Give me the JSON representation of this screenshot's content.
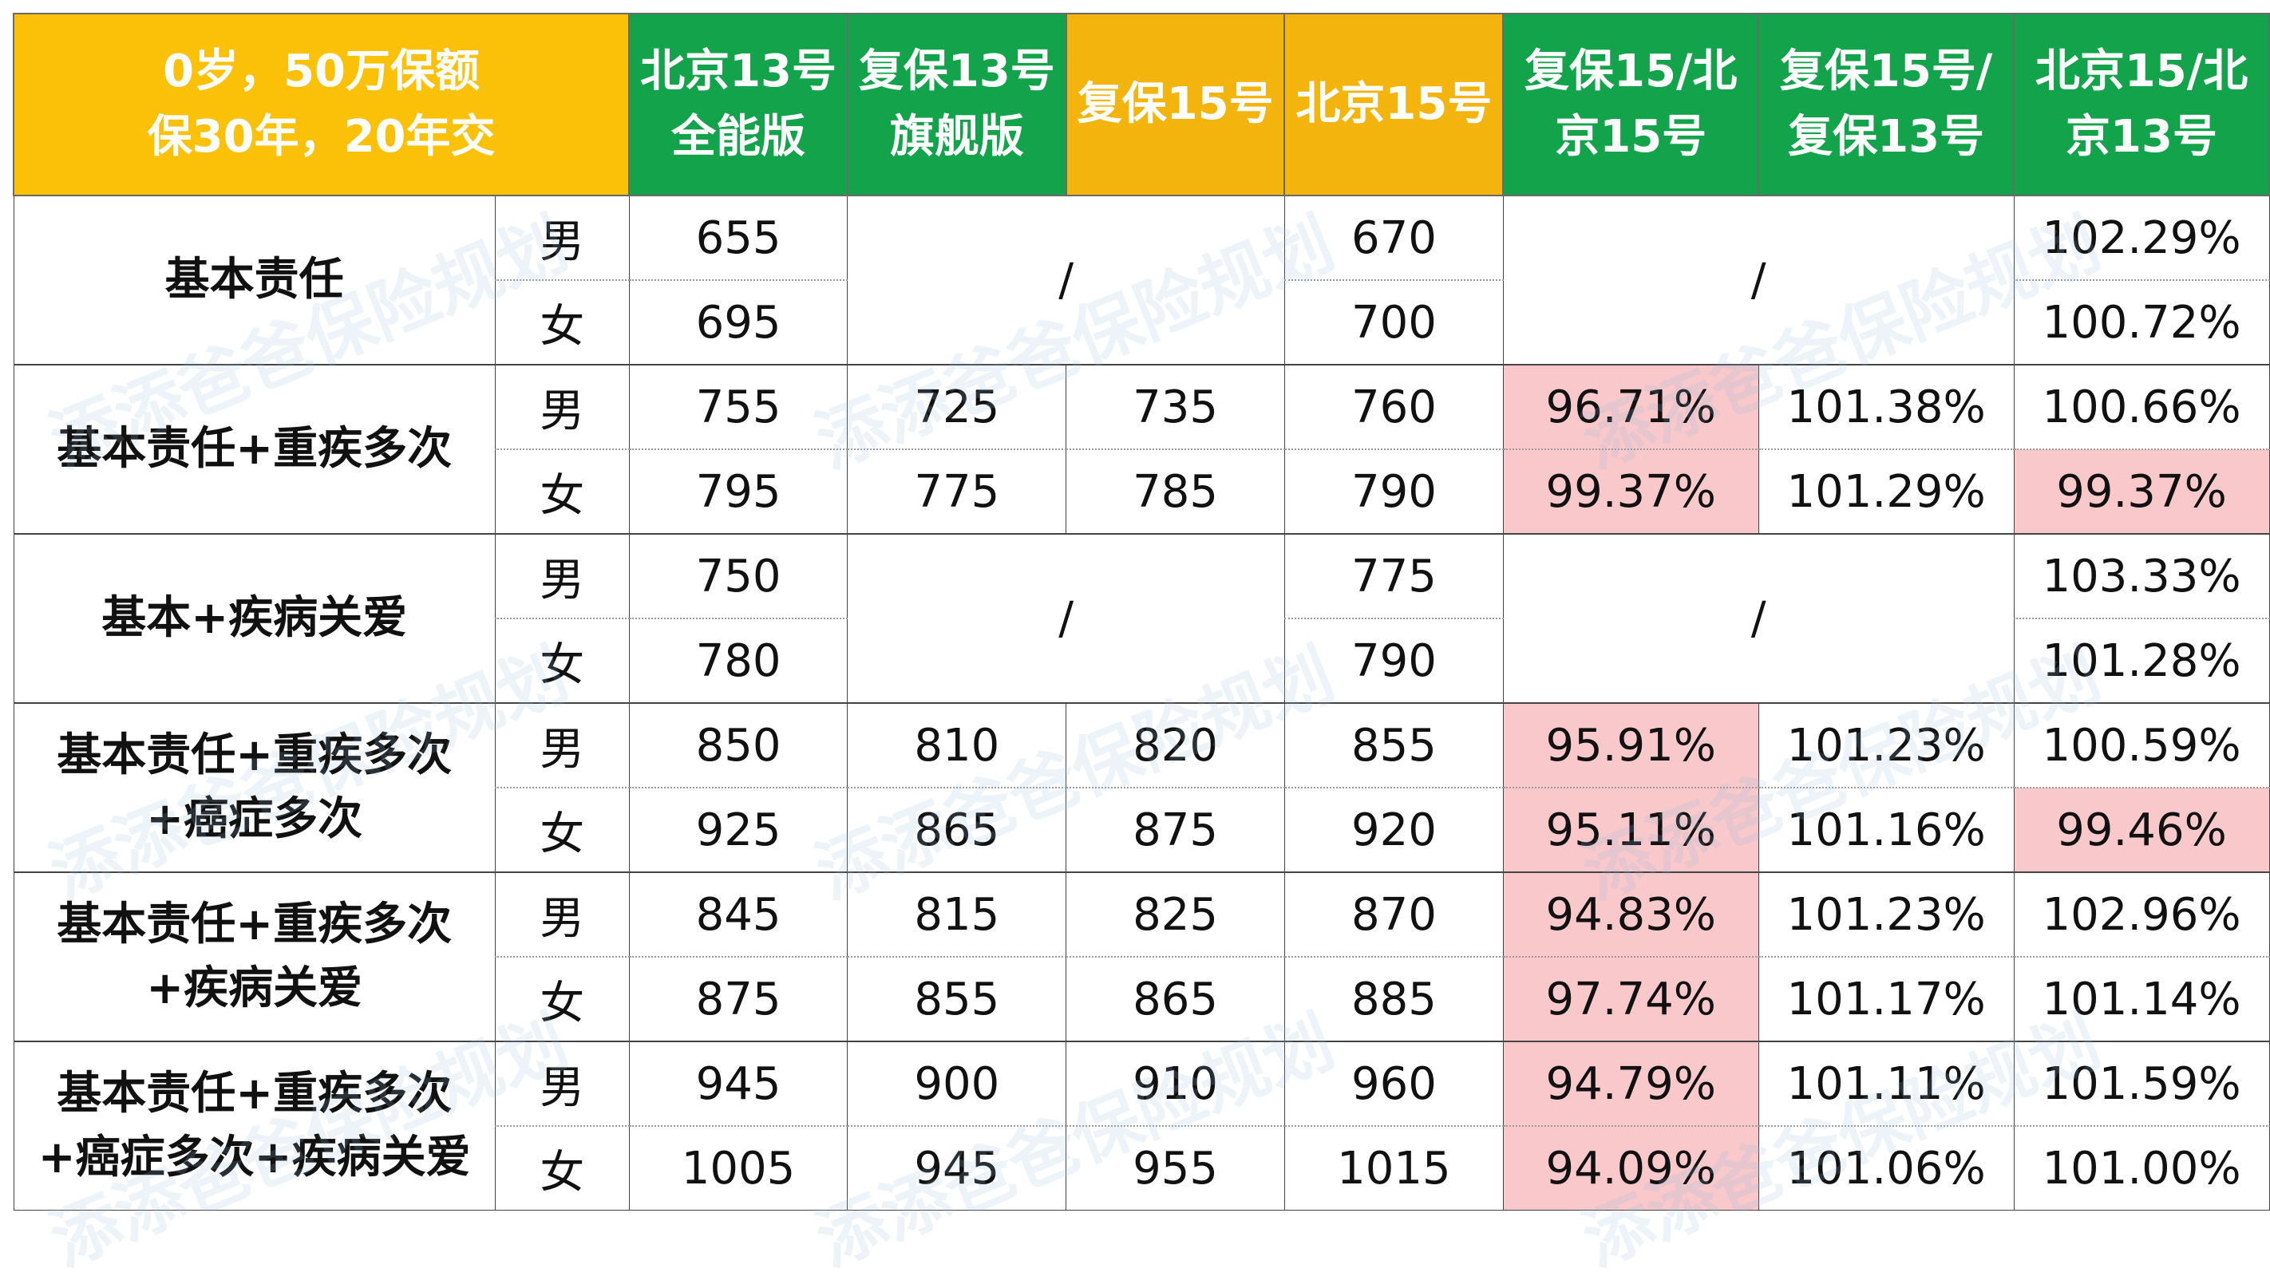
{
  "header": {
    "corner_line1": "0岁，50万保额",
    "corner_line2": "保30年，20年交",
    "columns": [
      {
        "line1": "北京13号",
        "line2": "全能版"
      },
      {
        "line1": "复保13号",
        "line2": "旗舰版"
      },
      {
        "line1": "复保15号",
        "line2": ""
      },
      {
        "line1": "北京15号",
        "line2": ""
      },
      {
        "line1": "复保15/北",
        "line2": "京15号"
      },
      {
        "line1": "复保15号/",
        "line2": "复保13号"
      },
      {
        "line1": "北京15/北",
        "line2": "京13号"
      }
    ]
  },
  "groups": [
    {
      "label_line1": "基本责任",
      "label_line2": "",
      "merged": true,
      "slash": "/",
      "rows": [
        {
          "gender": "男",
          "c1": "655",
          "c4": "670",
          "c7": "102.29%"
        },
        {
          "gender": "女",
          "c1": "695",
          "c4": "700",
          "c7": "100.72%"
        }
      ]
    },
    {
      "label_line1": "基本责任+重疾多次",
      "label_line2": "",
      "merged": false,
      "rows": [
        {
          "gender": "男",
          "c1": "755",
          "c2": "725",
          "c3": "735",
          "c4": "760",
          "c5": "96.71%",
          "c6": "101.38%",
          "c7": "100.66%"
        },
        {
          "gender": "女",
          "c1": "795",
          "c2": "775",
          "c3": "785",
          "c4": "790",
          "c5": "99.37%",
          "c6": "101.29%",
          "c7": "99.37%"
        }
      ]
    },
    {
      "label_line1": "基本+疾病关爱",
      "label_line2": "",
      "merged": true,
      "slash": "/",
      "rows": [
        {
          "gender": "男",
          "c1": "750",
          "c4": "775",
          "c7": "103.33%"
        },
        {
          "gender": "女",
          "c1": "780",
          "c4": "790",
          "c7": "101.28%"
        }
      ]
    },
    {
      "label_line1": "基本责任+重疾多次",
      "label_line2": "+癌症多次",
      "merged": false,
      "rows": [
        {
          "gender": "男",
          "c1": "850",
          "c2": "810",
          "c3": "820",
          "c4": "855",
          "c5": "95.91%",
          "c6": "101.23%",
          "c7": "100.59%"
        },
        {
          "gender": "女",
          "c1": "925",
          "c2": "865",
          "c3": "875",
          "c4": "920",
          "c5": "95.11%",
          "c6": "101.16%",
          "c7": "99.46%"
        }
      ]
    },
    {
      "label_line1": "基本责任+重疾多次",
      "label_line2": "+疾病关爱",
      "merged": false,
      "rows": [
        {
          "gender": "男",
          "c1": "845",
          "c2": "815",
          "c3": "825",
          "c4": "870",
          "c5": "94.83%",
          "c6": "101.23%",
          "c7": "102.96%"
        },
        {
          "gender": "女",
          "c1": "875",
          "c2": "855",
          "c3": "865",
          "c4": "885",
          "c5": "97.74%",
          "c6": "101.17%",
          "c7": "101.14%"
        }
      ]
    },
    {
      "label_line1": "基本责任+重疾多次",
      "label_line2": "+癌症多次+疾病关爱",
      "merged": false,
      "rows": [
        {
          "gender": "男",
          "c1": "945",
          "c2": "900",
          "c3": "910",
          "c4": "960",
          "c5": "94.79%",
          "c6": "101.11%",
          "c7": "101.59%"
        },
        {
          "gender": "女",
          "c1": "1005",
          "c2": "945",
          "c3": "955",
          "c4": "1015",
          "c5": "94.09%",
          "c6": "101.06%",
          "c7": "101.00%"
        }
      ]
    }
  ],
  "watermark": "添添爸爸保险规划",
  "colors": {
    "header_yellow": "#f8bf0c",
    "header_green": "#13a34a",
    "highlight_red_bg": "#f8c8cb",
    "highlight_red_text": "#9c1a21"
  }
}
